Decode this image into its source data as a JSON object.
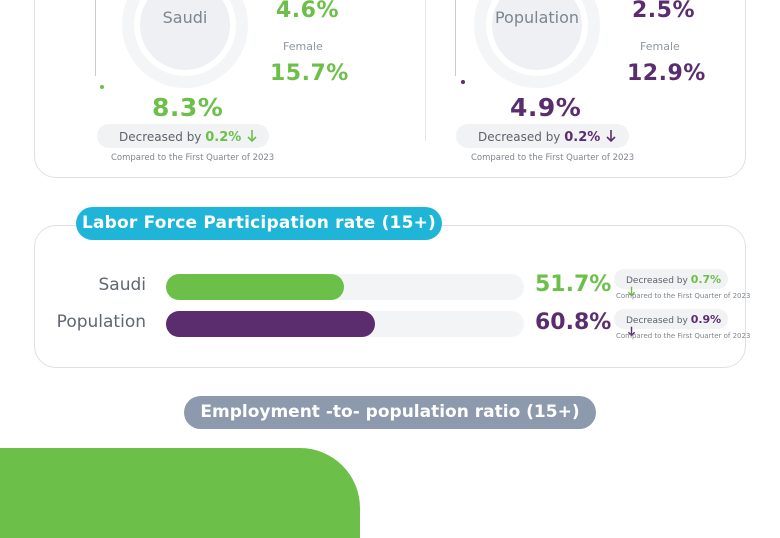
{
  "top_panels": [
    {
      "group": "Saudi",
      "male_value": "4.6%",
      "female_label": "Female",
      "female_value": "15.7%",
      "total_value": "8.3%",
      "change_text": "Decreased by",
      "change_value": "0.2%",
      "compared_text": "Compared to the First Quarter of 2023"
    },
    {
      "group": "Population",
      "male_value": "2.5%",
      "female_label": "Female",
      "female_value": "12.9%",
      "total_value": "4.9%",
      "change_text": "Decreased by",
      "change_value": "0.2%",
      "compared_text": "Compared to the First Quarter of 2023"
    }
  ],
  "lfp": {
    "title": "Labor Force Participation rate (15+)",
    "rows": [
      {
        "label": "Saudi",
        "value_text": "51.7%",
        "change_text": "Decreased by",
        "change_value": "0.7%",
        "compared_text": "Compared to the First Quarter of 2023"
      },
      {
        "label": "Population",
        "value_text": "60.8%",
        "change_text": "Decreased by",
        "change_value": "0.9%",
        "compared_text": "Compared to the First Quarter of 2023"
      }
    ]
  },
  "employment": {
    "title": "Employment -to- population ratio  (15+)"
  },
  "colors": {
    "saudi": "#6cc04a",
    "population": "#5b2d6f",
    "accent": "#1fb5d8",
    "muted": "#8d99ad"
  },
  "chart_data": {
    "type": "bar",
    "orientation": "horizontal",
    "title": "Labor Force Participation rate (15+)",
    "categories": [
      "Saudi",
      "Population"
    ],
    "values": [
      51.7,
      60.8
    ],
    "xlim": [
      0,
      100
    ],
    "grid": false
  }
}
